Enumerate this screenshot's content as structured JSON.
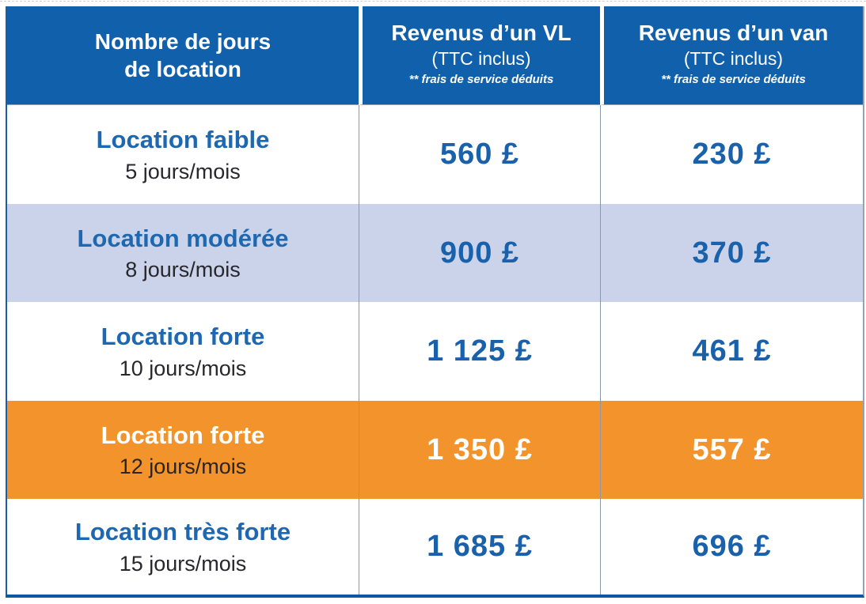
{
  "table": {
    "header": {
      "col1": {
        "line1": "Nombre de jours",
        "line2": "de location"
      },
      "col2": {
        "title": "Revenus d’un VL",
        "subtitle": "(TTC inclus)",
        "note": "** frais de service déduits"
      },
      "col3": {
        "title": "Revenus d’un van",
        "subtitle": "(TTC inclus)",
        "note": "** frais de service déduits"
      }
    },
    "rows": [
      {
        "label": "Location faible",
        "sublabel": "5 jours/mois",
        "vl": "560 £",
        "van": "230 £",
        "variant": "white"
      },
      {
        "label": "Location modérée",
        "sublabel": "8 jours/mois",
        "vl": "900 £",
        "van": "370 £",
        "variant": "lavender"
      },
      {
        "label": "Location forte",
        "sublabel": "10 jours/mois",
        "vl": "1 125 £",
        "van": "461 £",
        "variant": "white"
      },
      {
        "label": "Location forte",
        "sublabel": "12 jours/mois",
        "vl": "1 350 £",
        "van": "557 £",
        "variant": "orange"
      },
      {
        "label": "Location très forte",
        "sublabel": "15 jours/mois",
        "vl": "1 685 £",
        "van": "696 £",
        "variant": "white"
      }
    ],
    "colors": {
      "header_bg": "#1160AC",
      "lavender_row_bg": "#CBD3EA",
      "orange_row_bg": "#F3932B",
      "label_blue": "#1E68B2",
      "value_blue": "#1A61AC",
      "dark_text": "#27272C",
      "white_text": "#FFFFFF"
    }
  }
}
